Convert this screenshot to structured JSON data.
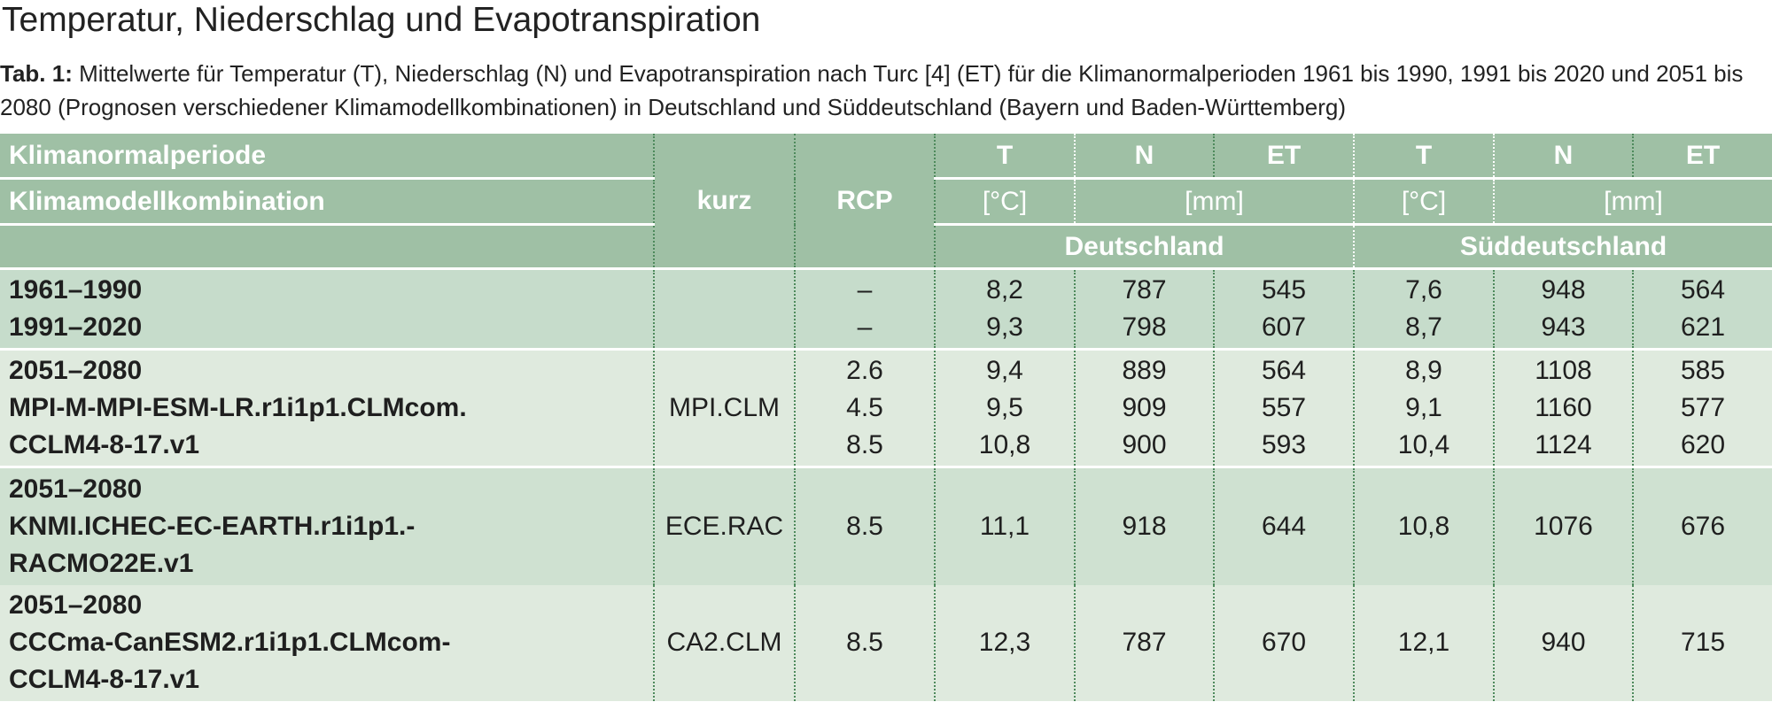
{
  "title": "Temperatur, Niederschlag und Evapotranspiration",
  "caption": {
    "label": "Tab. 1:",
    "text": "Mittelwerte für Temperatur (T), Niederschlag (N) und Evapotranspiration nach Turc [4] (ET) für die Klimanormalperioden 1961 bis 1990, 1991 bis 2020 und 2051 bis 2080 (Prognosen verschiedener Klimamodellkombinationen) in Deutschland und Süddeutschland (Bayern und Baden-Württemberg)"
  },
  "header": {
    "row1_label": "Klimanormalperiode",
    "row2_label": "Klimamodellkombination",
    "kurz": "kurz",
    "rcp": "RCP",
    "t": "T",
    "n": "N",
    "et": "ET",
    "unit_t": "[°C]",
    "unit_mm": "[mm]",
    "region_de": "Deutschland",
    "region_sd": "Süddeutschland"
  },
  "rows": [
    {
      "lines": [
        "1961–1990",
        "1991–2020"
      ],
      "kurz": "",
      "rcp": [
        "–",
        "–"
      ],
      "de_t": [
        "8,2",
        "9,3"
      ],
      "de_n": [
        "787",
        "798"
      ],
      "de_et": [
        "545",
        "607"
      ],
      "sd_t": [
        "7,6",
        "8,7"
      ],
      "sd_n": [
        "948",
        "943"
      ],
      "sd_et": [
        "564",
        "621"
      ]
    },
    {
      "lines": [
        "2051–2080",
        "MPI-M-MPI-ESM-LR.r1i1p1.CLMcom.",
        "CCLM4-8-17.v1"
      ],
      "kurz": "MPI.CLM",
      "rcp": [
        "2.6",
        "4.5",
        "8.5"
      ],
      "de_t": [
        "9,4",
        "9,5",
        "10,8"
      ],
      "de_n": [
        "889",
        "909",
        "900"
      ],
      "de_et": [
        "564",
        "557",
        "593"
      ],
      "sd_t": [
        "8,9",
        "9,1",
        "10,4"
      ],
      "sd_n": [
        "1108",
        "1160",
        "1124"
      ],
      "sd_et": [
        "585",
        "577",
        "620"
      ]
    },
    {
      "lines": [
        "2051–2080",
        "KNMI.ICHEC-EC-EARTH.r1i1p1.-",
        "RACMO22E.v1"
      ],
      "kurz": "ECE.RAC",
      "rcp": [
        "8.5"
      ],
      "de_t": [
        "11,1"
      ],
      "de_n": [
        "918"
      ],
      "de_et": [
        "644"
      ],
      "sd_t": [
        "10,8"
      ],
      "sd_n": [
        "1076"
      ],
      "sd_et": [
        "676"
      ]
    },
    {
      "lines": [
        "2051–2080",
        "CCCma-CanESM2.r1i1p1.CLMcom-",
        "CCLM4-8-17.v1"
      ],
      "kurz": "CA2.CLM",
      "rcp": [
        "8.5"
      ],
      "de_t": [
        "12,3"
      ],
      "de_n": [
        "787"
      ],
      "de_et": [
        "670"
      ],
      "sd_t": [
        "12,1"
      ],
      "sd_n": [
        "940"
      ],
      "sd_et": [
        "715"
      ]
    }
  ]
}
